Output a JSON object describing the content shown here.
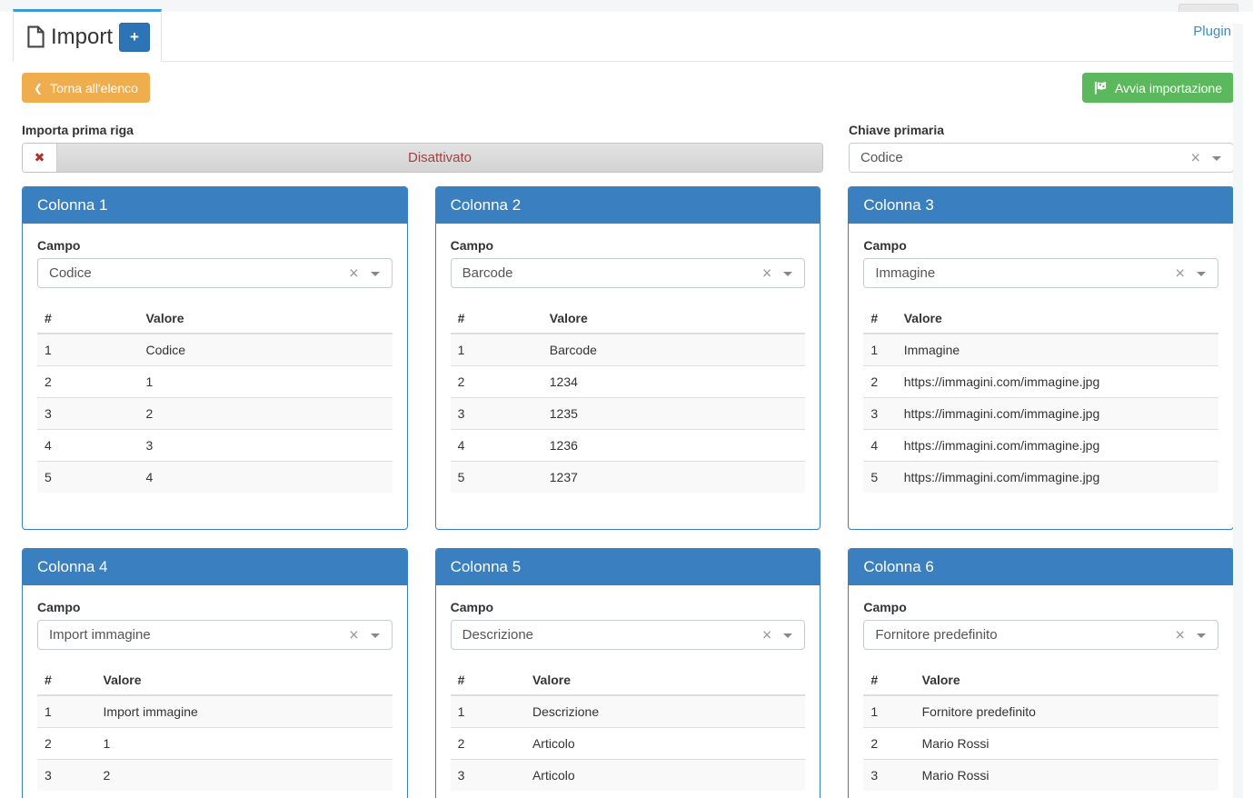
{
  "header": {
    "tab_title": "Import",
    "add_button": "+",
    "plugin_link": "Plugin"
  },
  "toolbar": {
    "back_button": "Torna all'elenco",
    "start_button": "Avvia importazione"
  },
  "settings": {
    "first_row_label": "Importa prima riga",
    "first_row_state": "Disattivato",
    "primary_key_label": "Chiave primaria",
    "primary_key_value": "Codice"
  },
  "field_label": "Campo",
  "table_headers": [
    "#",
    "Valore"
  ],
  "columns": [
    {
      "title": "Colonna 1",
      "field": "Codice",
      "rows": [
        [
          "1",
          "Codice"
        ],
        [
          "2",
          "1"
        ],
        [
          "3",
          "2"
        ],
        [
          "4",
          "3"
        ],
        [
          "5",
          "4"
        ]
      ]
    },
    {
      "title": "Colonna 2",
      "field": "Barcode",
      "rows": [
        [
          "1",
          "Barcode"
        ],
        [
          "2",
          "1234"
        ],
        [
          "3",
          "1235"
        ],
        [
          "4",
          "1236"
        ],
        [
          "5",
          "1237"
        ]
      ]
    },
    {
      "title": "Colonna 3",
      "field": "Immagine",
      "rows": [
        [
          "1",
          "Immagine"
        ],
        [
          "2",
          "https://immagini.com/immagine.jpg"
        ],
        [
          "3",
          "https://immagini.com/immagine.jpg"
        ],
        [
          "4",
          "https://immagini.com/immagine.jpg"
        ],
        [
          "5",
          "https://immagini.com/immagine.jpg"
        ]
      ]
    },
    {
      "title": "Colonna 4",
      "field": "Import immagine",
      "rows": [
        [
          "1",
          "Import immagine"
        ],
        [
          "2",
          "1"
        ],
        [
          "3",
          "2"
        ]
      ]
    },
    {
      "title": "Colonna 5",
      "field": "Descrizione",
      "rows": [
        [
          "1",
          "Descrizione"
        ],
        [
          "2",
          "Articolo"
        ],
        [
          "3",
          "Articolo"
        ]
      ]
    },
    {
      "title": "Colonna 6",
      "field": "Fornitore predefinito",
      "rows": [
        [
          "1",
          "Fornitore predefinito"
        ],
        [
          "2",
          "Mario Rossi"
        ],
        [
          "3",
          "Mario Rossi"
        ]
      ]
    }
  ],
  "icons": {
    "tab_icon": "file-icon",
    "back_icon": "chevron-left-icon",
    "start_icon": "flag-checkered-icon",
    "toggle_icon": "x-mark-icon",
    "select_clear_icon": "x-clear-icon",
    "select_caret_icon": "chevron-down-icon"
  },
  "colors": {
    "primary": "#3a80c1",
    "primary_dark": "#2d74b7",
    "tab_border": "#3c9ad5",
    "link_blue": "#3c8dbc",
    "success": "#5cb85c",
    "warning": "#f0ad4e",
    "danger_icon": "#b0312d",
    "danger_text": "#a4403e"
  }
}
